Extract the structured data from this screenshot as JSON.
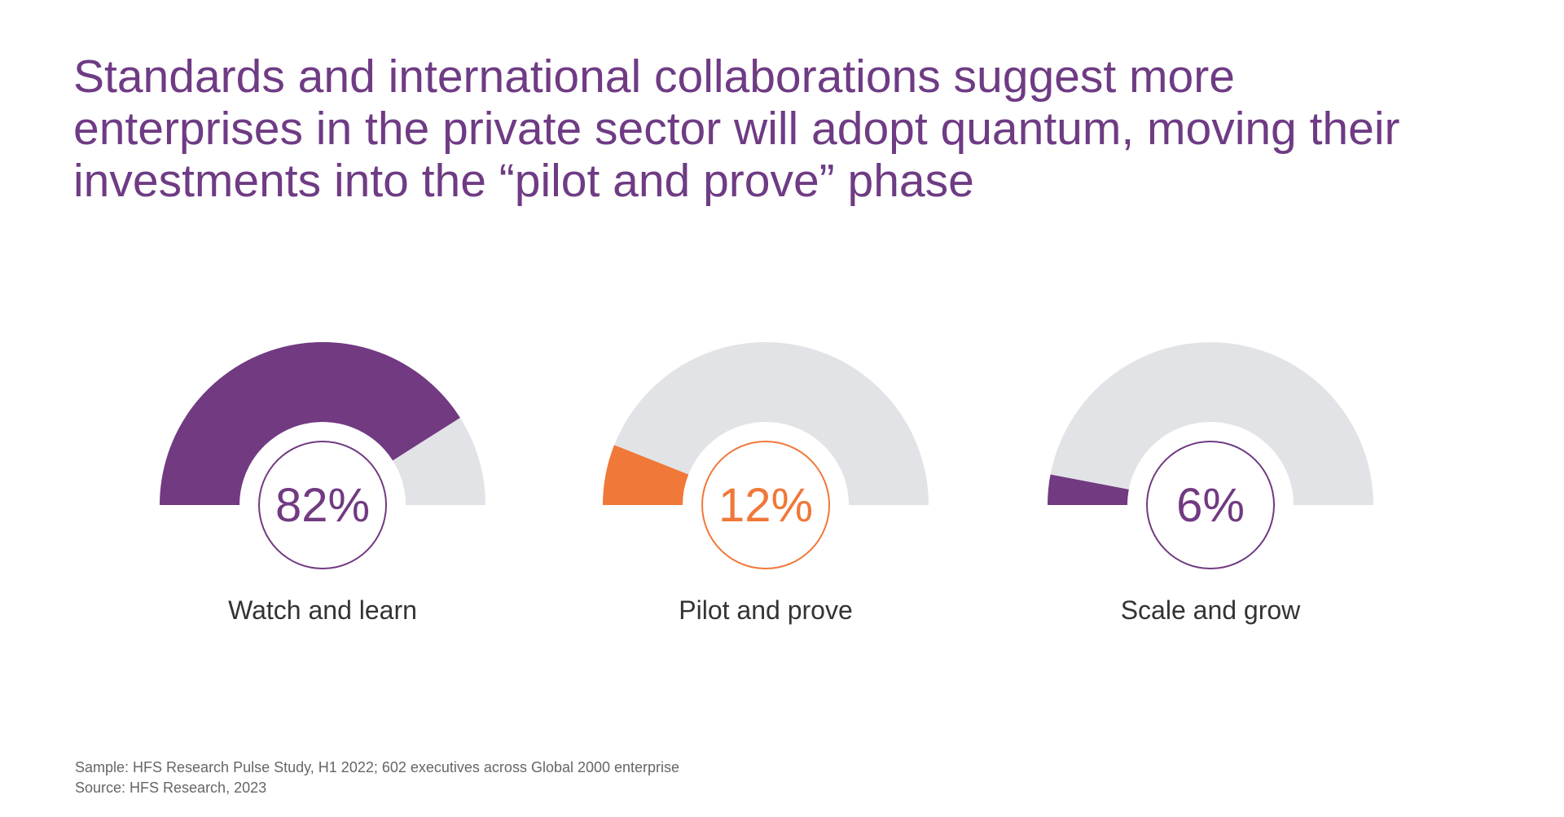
{
  "title_lines": [
    "Standards and international collaborations suggest more",
    "enterprises in the private sector will adopt quantum, moving their",
    "investments into the “pilot and prove” phase"
  ],
  "colors": {
    "title": "#6f3b84",
    "track": "#e2e3e6",
    "purple": "#713a81",
    "orange": "#f07839"
  },
  "chart_data": {
    "type": "gauge",
    "max": 100,
    "gauges": [
      {
        "label": "Watch and learn",
        "value": 82,
        "display": "82%",
        "color": "#713a81"
      },
      {
        "label": "Pilot and prove",
        "value": 12,
        "display": "12%",
        "color": "#f07839"
      },
      {
        "label": "Scale and grow",
        "value": 6,
        "display": "6%",
        "color": "#713a81"
      }
    ]
  },
  "footer": {
    "sample": "Sample: HFS Research Pulse Study, H1 2022; 602 executives across Global 2000 enterprise",
    "source": "Source: HFS Research, 2023"
  }
}
